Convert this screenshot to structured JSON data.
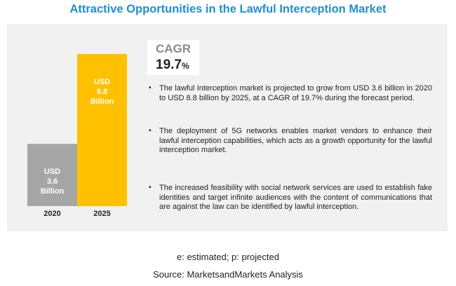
{
  "title": "Attractive Opportunities in the Lawful Interception Market",
  "chart_data": {
    "type": "bar",
    "categories": [
      "2020",
      "2025"
    ],
    "values": [
      3.6,
      8.8
    ],
    "bar_labels": [
      "USD\n3.6\nBillion",
      "USD\n8.8\nBillion"
    ],
    "colors": [
      "#a6a6a6",
      "#ffc000"
    ],
    "ylim": [
      0,
      8.8
    ],
    "grid": false
  },
  "cagr": {
    "label": "CAGR",
    "value": "19.7",
    "unit": "%"
  },
  "bullets": [
    "The lawful Interception market is projected to grow from USD  3.6 billion in 2020 to USD  8.8 billion by 2025, at a CAGR of 19.7% during the forecast period.",
    "The deployment of 5G networks enables market vendors to enhance their lawful interception capabilities, which acts as a growth opportunity for the lawful interception market.",
    "The increased feasibility with social network services are used to establish fake identities and target infinite audiences with the content of communications that are against the law can be identified by lawful interception."
  ],
  "bullet_symbol": "▪",
  "footnote": "e: estimated; p: projected",
  "source": "Source: MarketsandMarkets Analysis"
}
